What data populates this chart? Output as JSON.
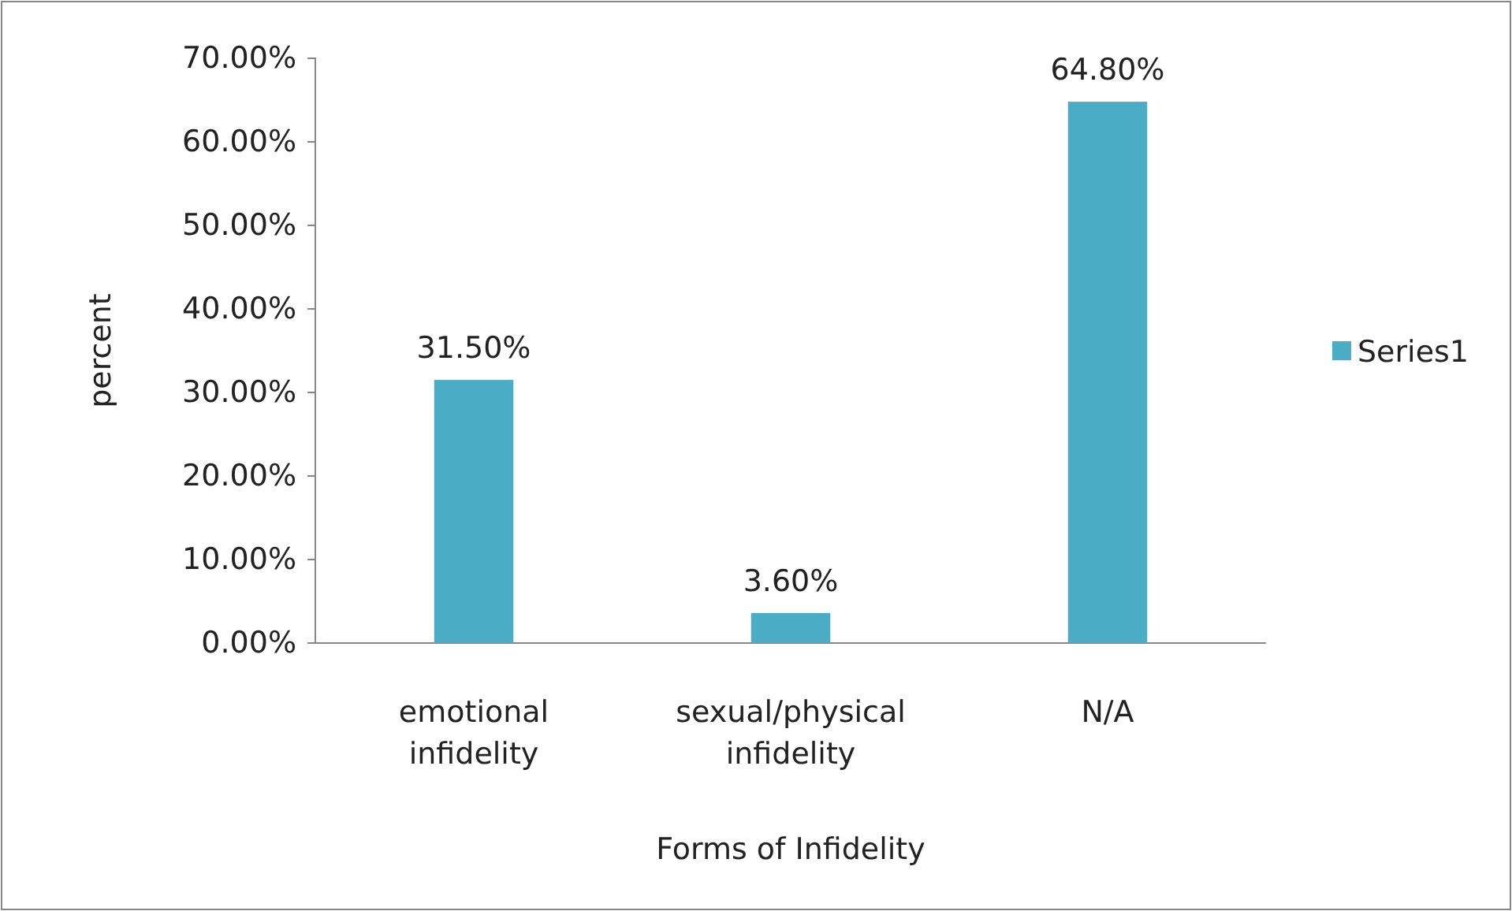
{
  "chart_data": {
    "type": "bar",
    "xlabel": "Forms of Infidelity",
    "ylabel": "percent",
    "categories": [
      "emotional infidelity",
      "sexual/physical infidelity",
      "N/A"
    ],
    "series": [
      {
        "name": "Series1",
        "color": "#4bacc6",
        "values": [
          31.5,
          3.6,
          64.8
        ],
        "value_labels": [
          "31.50%",
          "3.60%",
          "64.80%"
        ]
      }
    ],
    "ylim": [
      0,
      70
    ],
    "yticks": [
      {
        "value": 0,
        "label": "0.00%"
      },
      {
        "value": 10,
        "label": "10.00%"
      },
      {
        "value": 20,
        "label": "20.00%"
      },
      {
        "value": 30,
        "label": "30.00%"
      },
      {
        "value": 40,
        "label": "40.00%"
      },
      {
        "value": 50,
        "label": "50.00%"
      },
      {
        "value": 60,
        "label": "60.00%"
      },
      {
        "value": 70,
        "label": "70.00%"
      }
    ],
    "grid": false,
    "legend": "right"
  }
}
